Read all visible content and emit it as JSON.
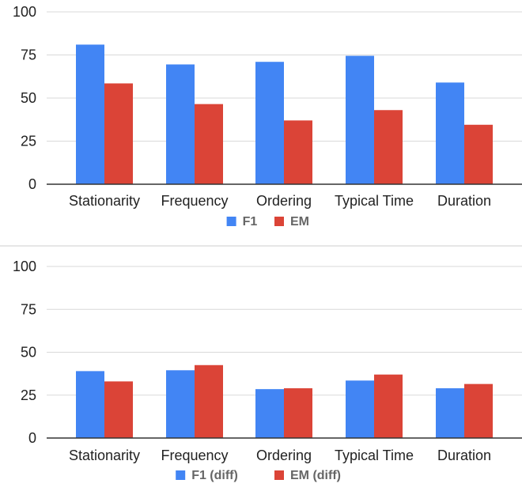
{
  "chart_data": [
    {
      "type": "bar",
      "title": "",
      "xlabel": "",
      "ylabel": "",
      "categories": [
        "Stationarity",
        "Frequency",
        "Ordering",
        "Typical Time",
        "Duration"
      ],
      "yticks": [
        "0",
        "25",
        "50",
        "75",
        "100"
      ],
      "ylim": [
        0,
        100
      ],
      "grid": true,
      "legend_position": "bottom",
      "series": [
        {
          "name": "F1",
          "color": "#4285f4",
          "values": [
            81,
            69.5,
            71,
            74.5,
            59
          ]
        },
        {
          "name": "EM",
          "color": "#db4437",
          "values": [
            58.5,
            46.5,
            37,
            43,
            34.5
          ]
        }
      ]
    },
    {
      "type": "bar",
      "title": "",
      "xlabel": "",
      "ylabel": "",
      "categories": [
        "Stationarity",
        "Frequency",
        "Ordering",
        "Typical Time",
        "Duration"
      ],
      "yticks": [
        "0",
        "25",
        "50",
        "75",
        "100"
      ],
      "ylim": [
        0,
        100
      ],
      "grid": true,
      "legend_position": "bottom",
      "series": [
        {
          "name": "F1 (diff)",
          "color": "#4285f4",
          "values": [
            39,
            39.5,
            28.5,
            33.5,
            29
          ]
        },
        {
          "name": "EM (diff)",
          "color": "#db4437",
          "values": [
            33,
            42.5,
            29,
            37,
            31.5
          ]
        }
      ]
    }
  ]
}
